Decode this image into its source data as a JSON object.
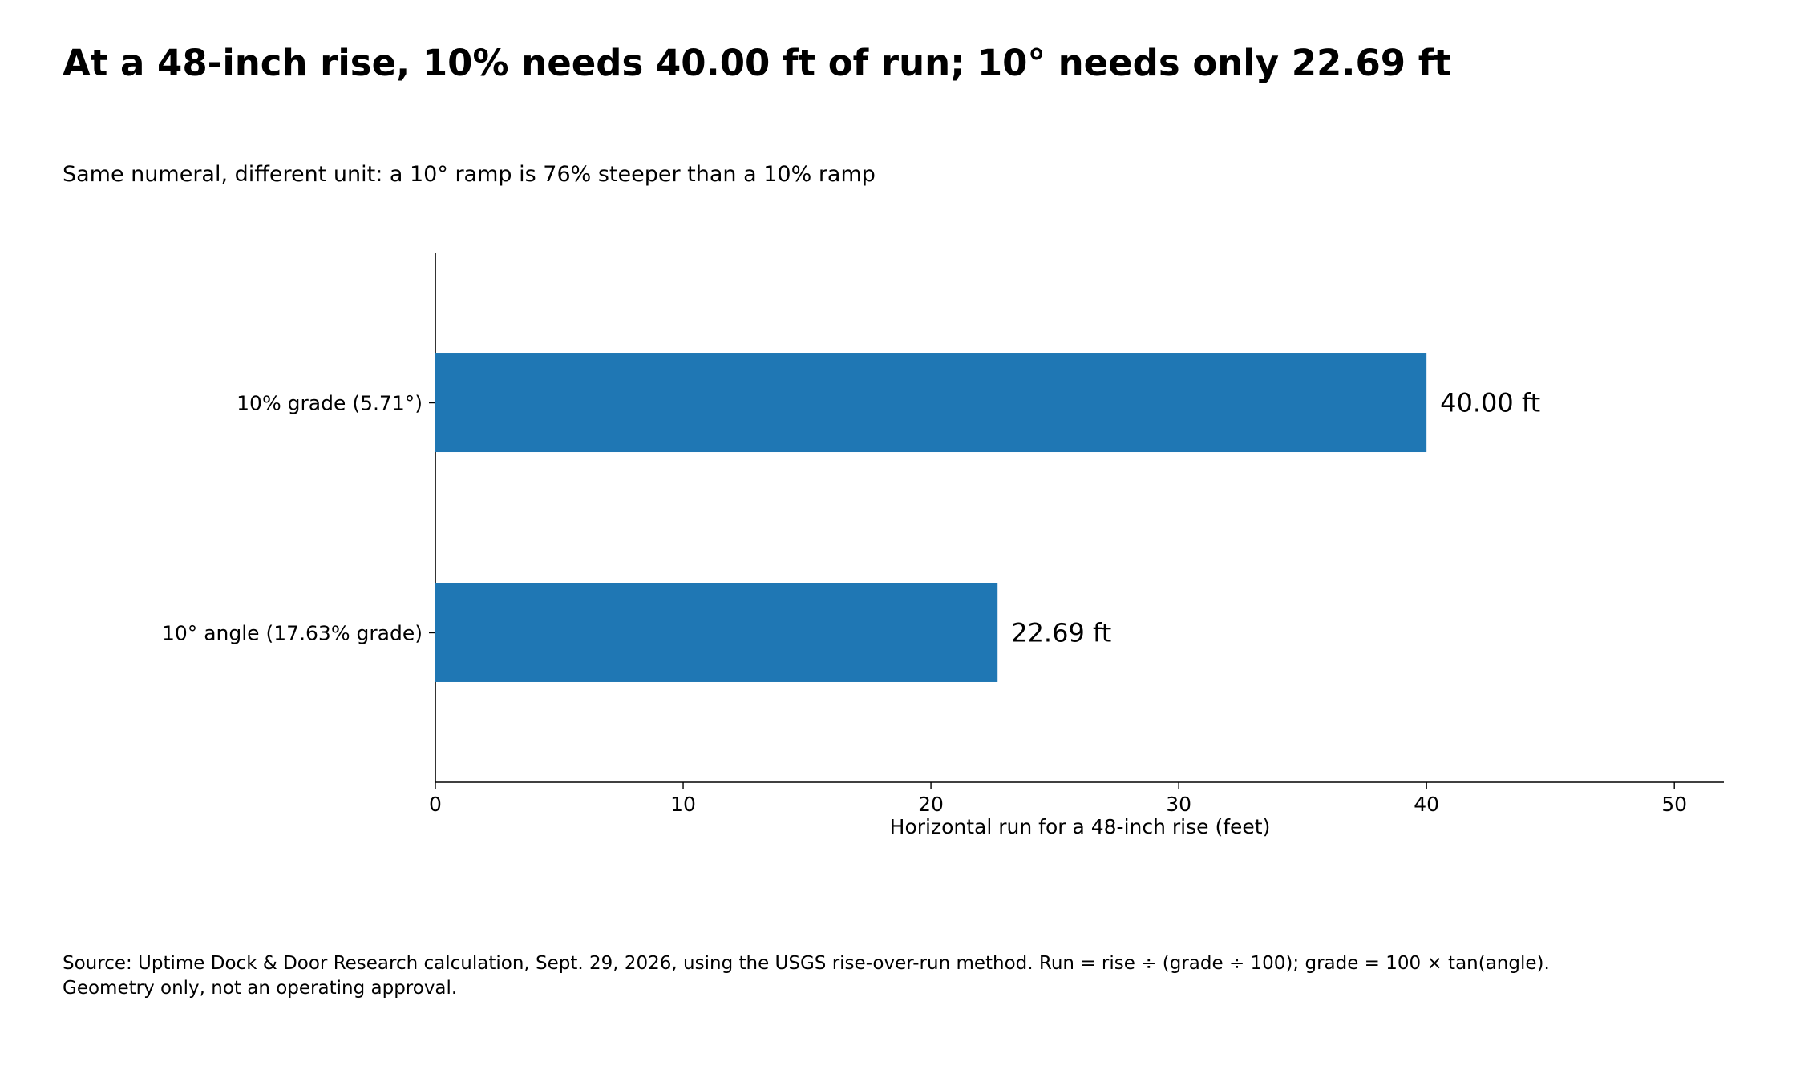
{
  "chart_data": {
    "type": "bar",
    "orientation": "horizontal",
    "title": "At a 48-inch rise, 10% needs 40.00 ft of run; 10° needs only 22.69 ft",
    "subtitle": "Same numeral, different unit: a 10° ramp is 76% steeper than a 10% ramp",
    "categories": [
      "10% grade (5.71°)",
      "10° angle (17.63% grade)"
    ],
    "values": [
      40.0,
      22.69
    ],
    "value_labels": [
      "40.00 ft",
      "22.69 ft"
    ],
    "xlabel": "Horizontal run for a 48-inch rise (feet)",
    "ylabel": "",
    "xlim": [
      0,
      52
    ],
    "xticks": [
      "0",
      "10",
      "20",
      "30",
      "40",
      "50"
    ],
    "grid": false,
    "bar_color": "#1f77b4",
    "source": "Source: Uptime Dock & Door Research calculation, Sept. 29, 2026, using the USGS rise-over-run method. Run = rise ÷ (grade ÷ 100); grade = 100 × tan(angle). Geometry only, not an operating approval."
  }
}
